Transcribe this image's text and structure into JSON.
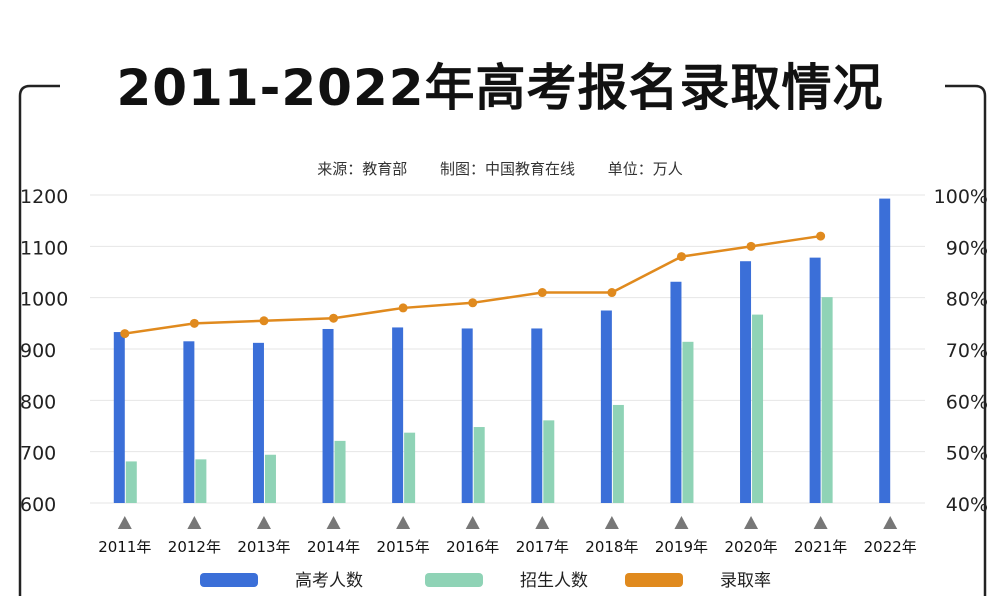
{
  "header": {
    "title": "2011-2022年高考报名录取情况",
    "source": "来源：教育部",
    "maker": "制图：中国教育在线",
    "unit": "单位：万人"
  },
  "chart_data": {
    "type": "bar",
    "title": "2011-2022年高考报名录取情况",
    "categories": [
      "2011年",
      "2012年",
      "2013年",
      "2014年",
      "2015年",
      "2016年",
      "2017年",
      "2018年",
      "2019年",
      "2020年",
      "2021年",
      "2022年"
    ],
    "series": [
      {
        "name": "高考人数",
        "axis": "left",
        "color": "#3b6fd8",
        "values": [
          933,
          915,
          912,
          939,
          942,
          940,
          940,
          975,
          1031,
          1071,
          1078,
          1193
        ]
      },
      {
        "name": "招生人数",
        "axis": "left",
        "color": "#8fd3b6",
        "values": [
          681,
          685,
          694,
          721,
          737,
          748,
          761,
          791,
          914,
          967,
          1001,
          null
        ]
      },
      {
        "name": "录取率",
        "axis": "right",
        "type": "line",
        "color": "#e08a1e",
        "values": [
          73,
          75,
          75.5,
          76,
          78,
          79,
          81,
          81,
          88,
          90,
          92,
          null
        ]
      }
    ],
    "ylim": [
      600,
      1200
    ],
    "yticks": [
      "600",
      "700",
      "800",
      "900",
      "1000",
      "1100",
      "1200"
    ],
    "y2lim": [
      40,
      100
    ],
    "y2ticks": [
      "40%",
      "50%",
      "60%",
      "70%",
      "80%",
      "90%",
      "100%"
    ],
    "legend_position": "bottom",
    "grid": true
  }
}
